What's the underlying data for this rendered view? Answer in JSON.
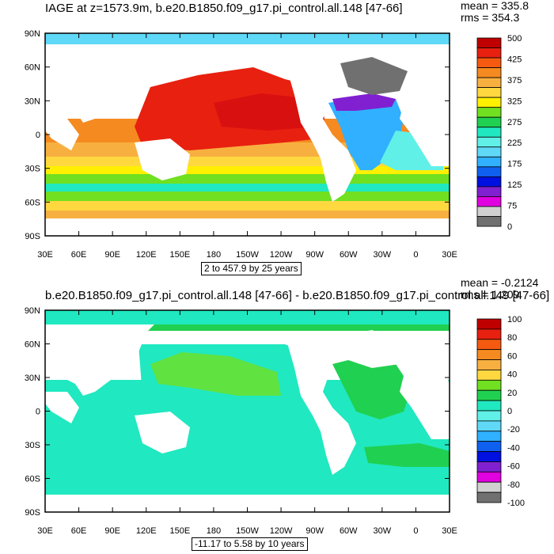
{
  "panel1": {
    "title": "IAGE at z=1573.9m, b.e20.B1850.f09_g17.pi_control.all.148 [47-66]",
    "mean_label": "mean = 335.8",
    "rms_label": "rms = 354.3",
    "contour_info": "2 to 457.9 by 25 years",
    "colorbar": {
      "labels": [
        "500",
        "425",
        "375",
        "325",
        "275",
        "225",
        "175",
        "125",
        "75",
        "0"
      ],
      "colors": [
        "#c00000",
        "#e82010",
        "#f55a10",
        "#f58a20",
        "#f7b040",
        "#ffd840",
        "#fff000",
        "#70e020",
        "#20d050",
        "#20e8c0",
        "#60f0e8",
        "#60d8f8",
        "#30b0ff",
        "#1060f0",
        "#0010e0",
        "#8020d0",
        "#e000e0",
        "#d0d0d0",
        "#707070"
      ]
    }
  },
  "panel2": {
    "title": "b.e20.B1850.f09_g17.pi_control.all.148 [47-66] - b.e20.B1850.f09_g17.pi_control.all.149 [47-66]",
    "mean_label": "mean = -0.2124",
    "rms_label": "rms = 1.209",
    "contour_info": "-11.17 to 5.58 by 10 years",
    "colorbar": {
      "labels": [
        "100",
        "80",
        "60",
        "40",
        "20",
        "0",
        "-20",
        "-40",
        "-60",
        "-80",
        "-100"
      ],
      "colors": [
        "#c00000",
        "#e82010",
        "#f55a10",
        "#f58a20",
        "#f7b040",
        "#ffd840",
        "#70e020",
        "#20d050",
        "#20e8c0",
        "#60f0e8",
        "#60d8f8",
        "#30b0ff",
        "#1060f0",
        "#0010e0",
        "#8020d0",
        "#e000e0",
        "#d0d0d0",
        "#707070"
      ]
    }
  },
  "axes": {
    "lat_labels": [
      "90N",
      "60N",
      "30N",
      "0",
      "30S",
      "60S",
      "90S"
    ],
    "lon_labels": [
      "30E",
      "60E",
      "90E",
      "120E",
      "150E",
      "180",
      "150W",
      "120W",
      "90W",
      "60W",
      "30W",
      "0",
      "30E"
    ]
  }
}
